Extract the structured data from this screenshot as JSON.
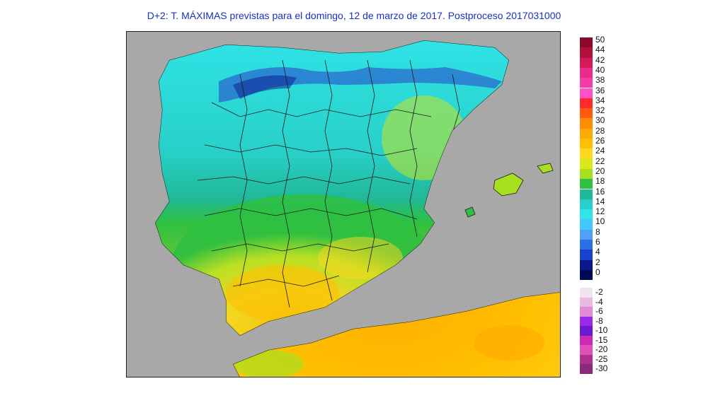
{
  "title": "D+2: T. MÁXIMAS previstas para el domingo, 12 de marzo de 2017. Postproceso 2017031000",
  "legend_positive": [
    {
      "label": "50",
      "color": "#8b0a2a"
    },
    {
      "label": "44",
      "color": "#b0103c"
    },
    {
      "label": "42",
      "color": "#d41a5a"
    },
    {
      "label": "40",
      "color": "#ec2a8a"
    },
    {
      "label": "38",
      "color": "#f43aa8"
    },
    {
      "label": "36",
      "color": "#ff50c8"
    },
    {
      "label": "34",
      "color": "#ff2a2a"
    },
    {
      "label": "32",
      "color": "#ff5a10"
    },
    {
      "label": "30",
      "color": "#ff8c00"
    },
    {
      "label": "28",
      "color": "#ffaa00"
    },
    {
      "label": "26",
      "color": "#ffc000"
    },
    {
      "label": "24",
      "color": "#ffd820"
    },
    {
      "label": "22",
      "color": "#d8e818"
    },
    {
      "label": "20",
      "color": "#a8e020"
    },
    {
      "label": "18",
      "color": "#2ec040"
    },
    {
      "label": "16",
      "color": "#20b898"
    },
    {
      "label": "14",
      "color": "#28d0c8"
    },
    {
      "label": "12",
      "color": "#30e4e8"
    },
    {
      "label": "10",
      "color": "#40c8ff"
    },
    {
      "label": "8",
      "color": "#50a0f8"
    },
    {
      "label": "6",
      "color": "#2a70e8"
    },
    {
      "label": "4",
      "color": "#1a40d0"
    },
    {
      "label": "2",
      "color": "#0a1890"
    },
    {
      "label": "0",
      "color": "#000a50"
    }
  ],
  "legend_negative": [
    {
      "label": "-2",
      "color": "#f2e4ee"
    },
    {
      "label": "-4",
      "color": "#e8bce0"
    },
    {
      "label": "-6",
      "color": "#e28ad8"
    },
    {
      "label": "-8",
      "color": "#9a2ae8"
    },
    {
      "label": "-10",
      "color": "#6a1ad0"
    },
    {
      "label": "-15",
      "color": "#d028b0"
    },
    {
      "label": "-20",
      "color": "#e050b8"
    },
    {
      "label": "-25",
      "color": "#b03090"
    },
    {
      "label": "-30",
      "color": "#8a2a7a"
    }
  ],
  "map_colors": {
    "sea": "#a8a8a8",
    "north": "#30e0e8",
    "north_dark": "#2a40c8",
    "center": "#20c0a0",
    "south_green": "#a8e020",
    "south_yellow": "#ffd820",
    "orange": "#ffaa00",
    "borders": "#1a1a1a"
  }
}
